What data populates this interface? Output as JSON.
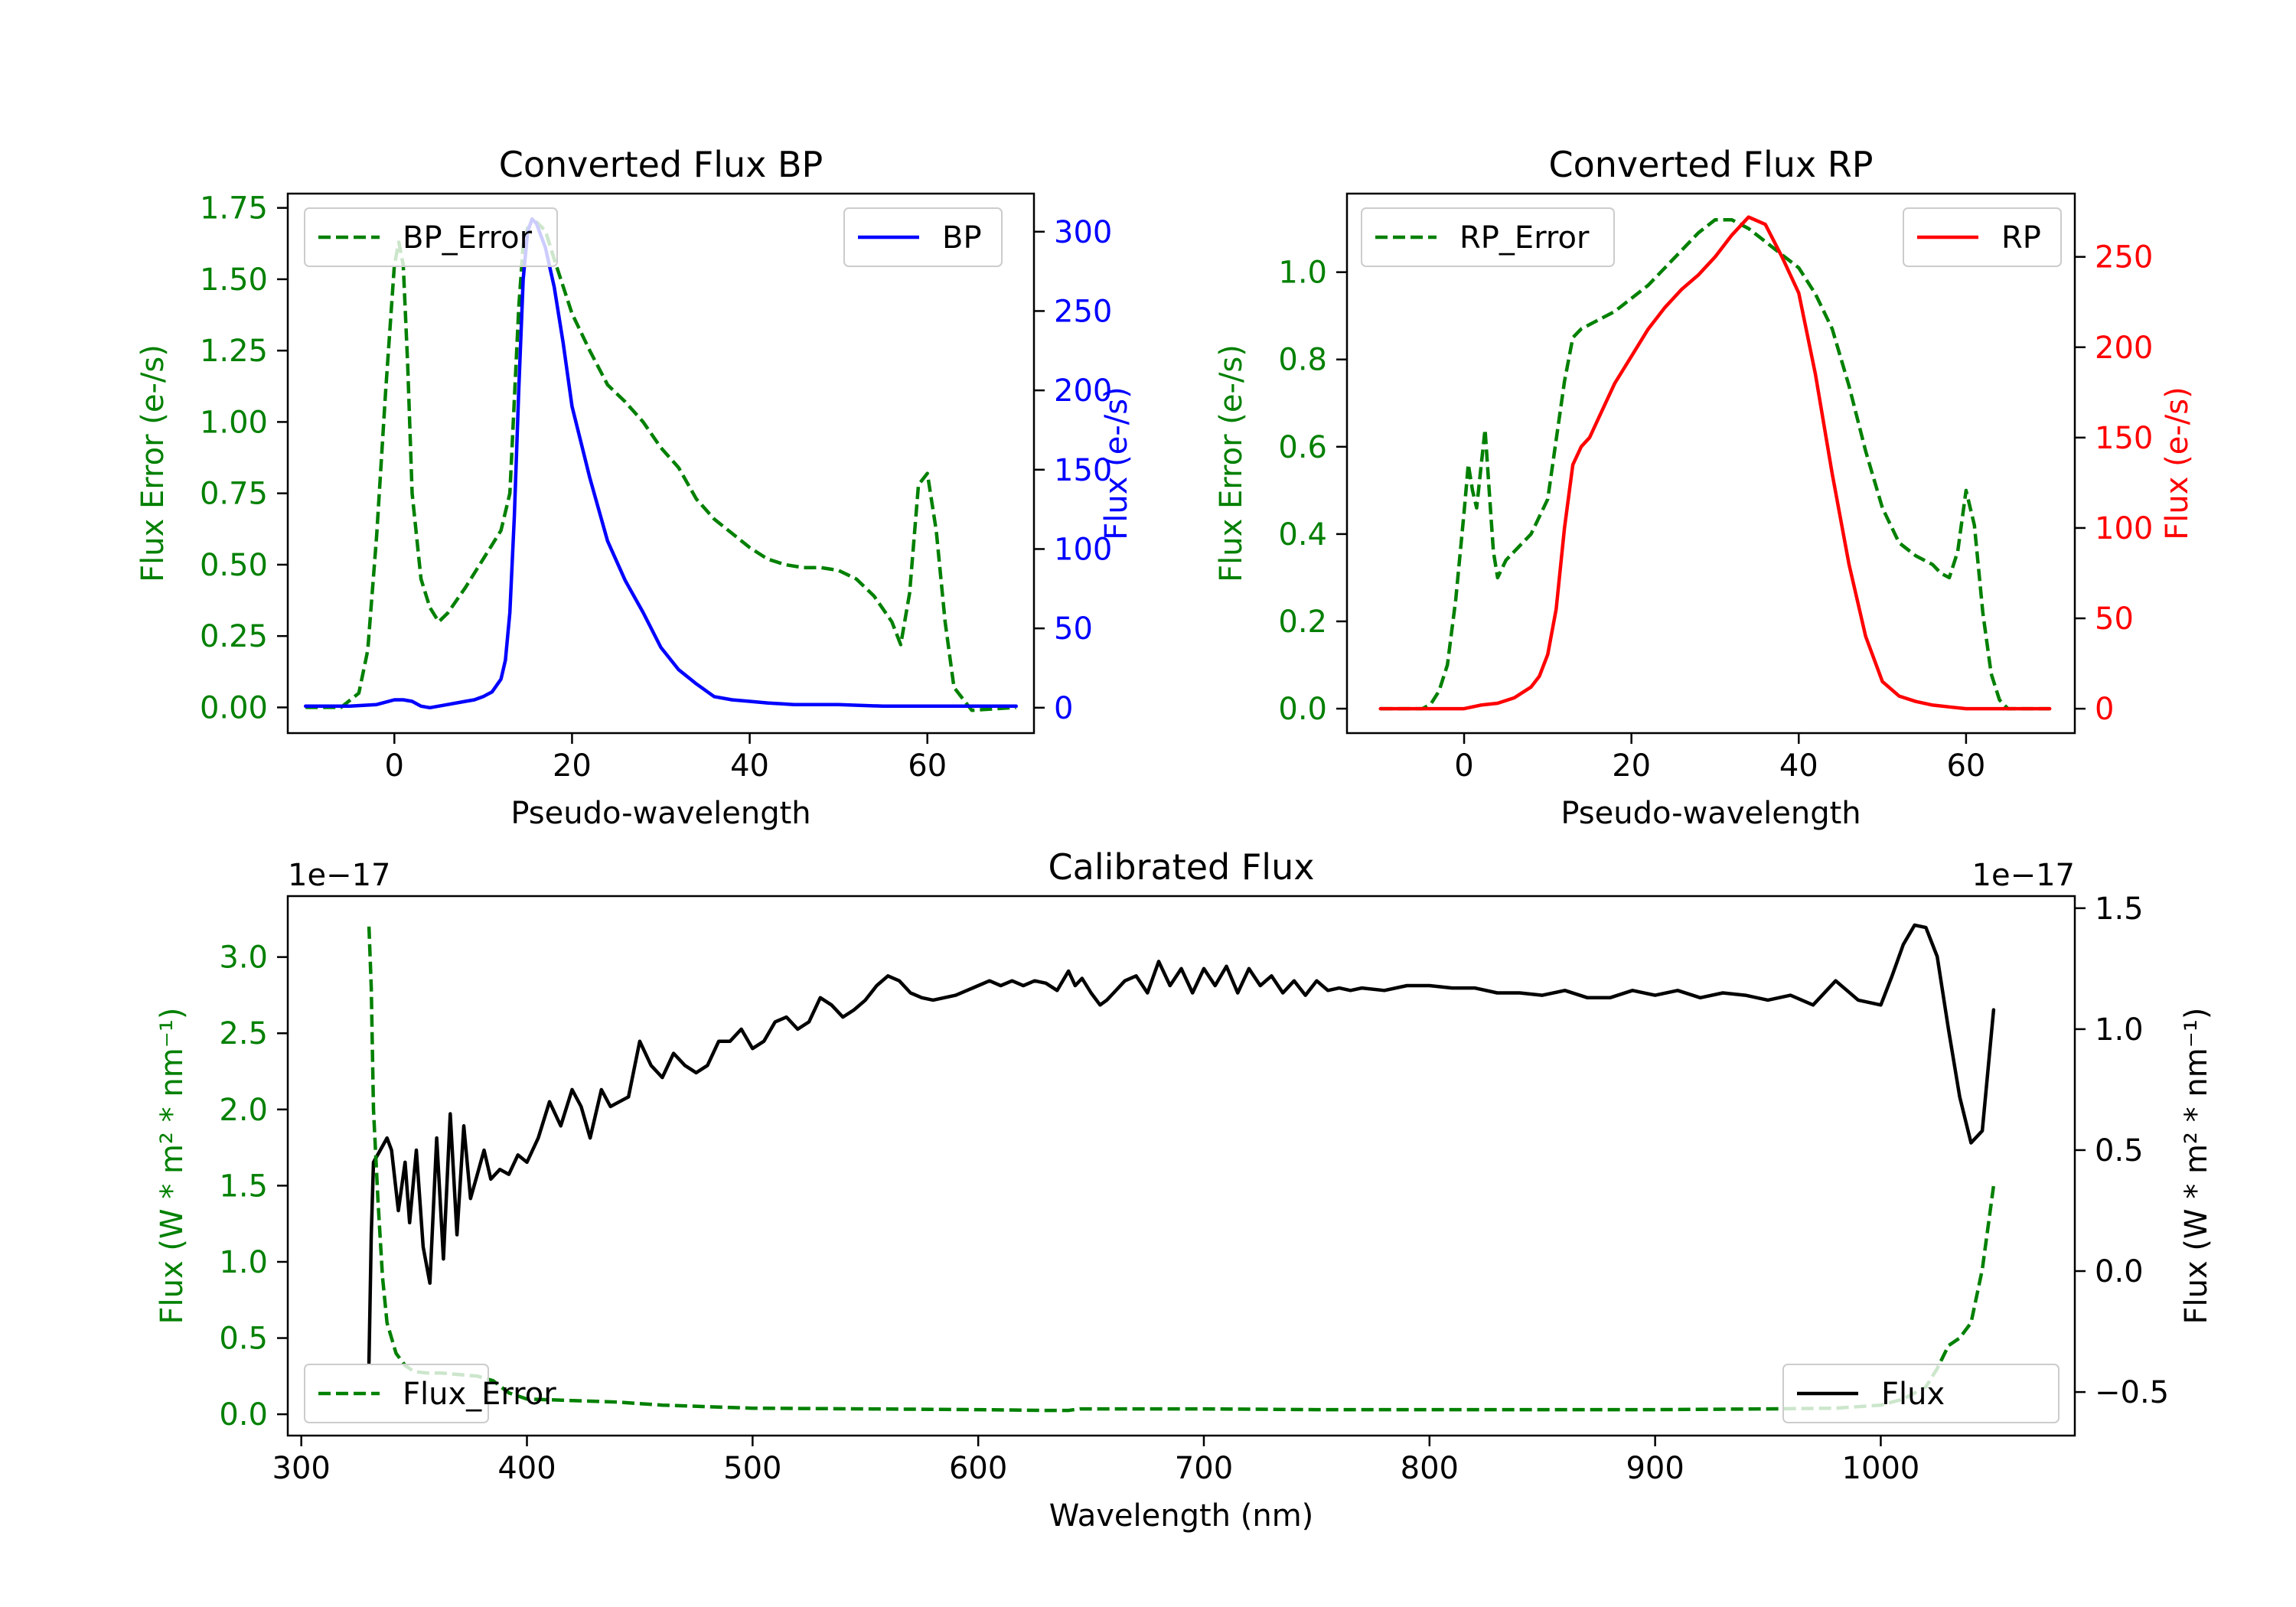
{
  "colors": {
    "green": "#008000",
    "blue": "#0000ff",
    "red": "#ff0000",
    "black": "#000000"
  },
  "chart_data": [
    {
      "id": "bp",
      "type": "line",
      "title": "Converted Flux BP",
      "xlabel": "Pseudo-wavelength",
      "ylabel_left": "Flux Error (e-/s)",
      "ylabel_right": "Flux (e-/s)",
      "xlim": [
        -12,
        72
      ],
      "ylim_left": [
        -0.09,
        1.8
      ],
      "ylim_right": [
        -16,
        324
      ],
      "xticks": [
        0,
        20,
        40,
        60
      ],
      "xtick_labels": [
        "0",
        "20",
        "40",
        "60"
      ],
      "yticks_left": [
        0,
        0.25,
        0.5,
        0.75,
        1.0,
        1.25,
        1.5,
        1.75
      ],
      "ytick_labels_left": [
        "0.00",
        "0.25",
        "0.50",
        "0.75",
        "1.00",
        "1.25",
        "1.50",
        "1.75"
      ],
      "yticks_right": [
        0,
        50,
        100,
        150,
        200,
        250,
        300
      ],
      "ytick_labels_right": [
        "0",
        "50",
        "100",
        "150",
        "200",
        "250",
        "300"
      ],
      "legend_left": "top-left",
      "legend_right": "top-right",
      "series": [
        {
          "name": "BP_Error",
          "axis": "left",
          "color": "#008000",
          "dash": true,
          "x": [
            -10,
            -6,
            -4,
            -3,
            -2,
            -1,
            0,
            0.5,
            1,
            1.5,
            2,
            3,
            4,
            5,
            6,
            8,
            10,
            12,
            13,
            14,
            14.5,
            15,
            16,
            17,
            18,
            20,
            22,
            24,
            26,
            28,
            30,
            32,
            34,
            36,
            38,
            40,
            42,
            44,
            46,
            48,
            50,
            52,
            54,
            56,
            57,
            58,
            59,
            60,
            61,
            62,
            63,
            65,
            70
          ],
          "values": [
            0.0,
            0.0,
            0.05,
            0.2,
            0.6,
            1.1,
            1.55,
            1.63,
            1.55,
            1.2,
            0.75,
            0.45,
            0.35,
            0.3,
            0.33,
            0.42,
            0.52,
            0.62,
            0.75,
            1.4,
            1.62,
            1.68,
            1.7,
            1.67,
            1.57,
            1.38,
            1.25,
            1.13,
            1.07,
            1.0,
            0.91,
            0.84,
            0.73,
            0.66,
            0.61,
            0.56,
            0.52,
            0.5,
            0.49,
            0.49,
            0.48,
            0.45,
            0.39,
            0.3,
            0.22,
            0.4,
            0.78,
            0.82,
            0.62,
            0.3,
            0.07,
            -0.01,
            0.0
          ]
        },
        {
          "name": "BP",
          "axis": "right",
          "color": "#0000ff",
          "dash": false,
          "x": [
            -10,
            -5,
            -2,
            0,
            1,
            2,
            3,
            4,
            6,
            8,
            9,
            10,
            11,
            12,
            12.5,
            13,
            13.5,
            14,
            14.5,
            15,
            15.5,
            16,
            17,
            18,
            19,
            20,
            22,
            24,
            26,
            28,
            30,
            32,
            34,
            36,
            38,
            40,
            42,
            45,
            50,
            55,
            60,
            65,
            70
          ],
          "values": [
            1,
            1,
            2,
            5,
            5,
            4,
            1,
            0,
            2,
            4,
            5,
            7,
            10,
            18,
            30,
            60,
            120,
            200,
            270,
            300,
            308,
            305,
            290,
            265,
            230,
            190,
            145,
            105,
            80,
            60,
            38,
            24,
            15,
            7,
            5,
            4,
            3,
            2,
            2,
            1,
            1,
            1,
            1
          ]
        }
      ]
    },
    {
      "id": "rp",
      "type": "line",
      "title": "Converted Flux RP",
      "xlabel": "Pseudo-wavelength",
      "ylabel_left": "Flux Error (e-/s)",
      "ylabel_right": "Flux (e-/s)",
      "xlim": [
        -14,
        73
      ],
      "ylim_left": [
        -0.056,
        1.18
      ],
      "ylim_right": [
        -13.5,
        285
      ],
      "xticks": [
        0,
        20,
        40,
        60
      ],
      "xtick_labels": [
        "0",
        "20",
        "40",
        "60"
      ],
      "yticks_left": [
        0,
        0.2,
        0.4,
        0.6,
        0.8,
        1.0
      ],
      "ytick_labels_left": [
        "0.0",
        "0.2",
        "0.4",
        "0.6",
        "0.8",
        "1.0"
      ],
      "yticks_right": [
        0,
        50,
        100,
        150,
        200,
        250
      ],
      "ytick_labels_right": [
        "0",
        "50",
        "100",
        "150",
        "200",
        "250"
      ],
      "legend_left": "top-left",
      "legend_right": "top-right",
      "series": [
        {
          "name": "RP_Error",
          "axis": "left",
          "color": "#008000",
          "dash": true,
          "x": [
            -10,
            -5,
            -4,
            -3,
            -2,
            -1,
            0,
            0.5,
            1,
            1.5,
            2,
            2.5,
            3,
            3.5,
            4,
            5,
            6,
            8,
            10,
            12,
            13,
            14,
            16,
            18,
            20,
            22,
            24,
            26,
            28,
            30,
            32,
            34,
            36,
            38,
            40,
            42,
            44,
            46,
            48,
            50,
            52,
            54,
            56,
            57,
            58,
            59,
            60,
            61,
            62,
            63,
            64,
            65,
            70
          ],
          "values": [
            0.0,
            0.0,
            0.01,
            0.04,
            0.1,
            0.25,
            0.45,
            0.56,
            0.5,
            0.46,
            0.55,
            0.64,
            0.5,
            0.36,
            0.3,
            0.34,
            0.36,
            0.4,
            0.48,
            0.75,
            0.85,
            0.87,
            0.89,
            0.91,
            0.94,
            0.97,
            1.01,
            1.05,
            1.09,
            1.12,
            1.12,
            1.1,
            1.07,
            1.04,
            1.01,
            0.95,
            0.87,
            0.74,
            0.59,
            0.46,
            0.38,
            0.35,
            0.33,
            0.31,
            0.3,
            0.36,
            0.5,
            0.42,
            0.22,
            0.08,
            0.02,
            0.0,
            0.0
          ]
        },
        {
          "name": "RP",
          "axis": "right",
          "color": "#ff0000",
          "dash": false,
          "x": [
            -10,
            -5,
            0,
            2,
            4,
            6,
            8,
            9,
            10,
            11,
            12,
            13,
            14,
            15,
            16,
            18,
            20,
            22,
            24,
            26,
            28,
            30,
            32,
            34,
            36,
            38,
            40,
            42,
            44,
            46,
            48,
            50,
            52,
            54,
            56,
            58,
            60,
            62,
            65,
            70
          ],
          "values": [
            0,
            0,
            0,
            2,
            3,
            6,
            12,
            18,
            30,
            55,
            100,
            135,
            145,
            150,
            160,
            180,
            195,
            210,
            222,
            232,
            240,
            250,
            262,
            272,
            268,
            250,
            230,
            185,
            130,
            80,
            40,
            15,
            7,
            4,
            2,
            1,
            0,
            0,
            0,
            0
          ]
        }
      ]
    },
    {
      "id": "cal",
      "type": "line",
      "title": "Calibrated Flux",
      "xlabel": "Wavelength (nm)",
      "ylabel_left": "Flux (W * m² * nm⁻¹)",
      "ylabel_right": "Flux (W * m² * nm⁻¹)",
      "offset_left": "1e−17",
      "offset_right": "1e−17",
      "xlim": [
        294,
        1086
      ],
      "ylim_left": [
        -0.14,
        3.4
      ],
      "ylim_right": [
        -0.68,
        1.55
      ],
      "xticks": [
        300,
        400,
        500,
        600,
        700,
        800,
        900,
        1000
      ],
      "xtick_labels": [
        "300",
        "400",
        "500",
        "600",
        "700",
        "800",
        "900",
        "1000"
      ],
      "yticks_left": [
        0,
        0.5,
        1.0,
        1.5,
        2.0,
        2.5,
        3.0
      ],
      "ytick_labels_left": [
        "0.0",
        "0.5",
        "1.0",
        "1.5",
        "2.0",
        "2.5",
        "3.0"
      ],
      "yticks_right": [
        -0.5,
        0,
        0.5,
        1.0,
        1.5
      ],
      "ytick_labels_right": [
        "−0.5",
        "0.0",
        "0.5",
        "1.0",
        "1.5"
      ],
      "legend_left": "bottom-left",
      "legend_right": "bottom-right",
      "series": [
        {
          "name": "Flux",
          "axis": "right",
          "color": "#000000",
          "dash": false,
          "x": [
            330,
            331,
            332,
            335,
            338,
            340,
            343,
            346,
            348,
            351,
            354,
            357,
            360,
            363,
            366,
            369,
            372,
            375,
            378,
            381,
            384,
            388,
            392,
            396,
            400,
            405,
            410,
            415,
            420,
            424,
            428,
            433,
            437,
            441,
            445,
            450,
            455,
            460,
            465,
            470,
            475,
            480,
            485,
            490,
            495,
            500,
            505,
            510,
            515,
            520,
            525,
            530,
            535,
            540,
            545,
            550,
            555,
            560,
            565,
            570,
            575,
            580,
            590,
            600,
            605,
            610,
            615,
            620,
            625,
            630,
            635,
            640,
            643,
            646,
            650,
            654,
            657,
            660,
            665,
            670,
            675,
            680,
            685,
            690,
            695,
            700,
            705,
            710,
            715,
            720,
            725,
            730,
            735,
            740,
            745,
            750,
            755,
            760,
            765,
            770,
            780,
            790,
            800,
            810,
            820,
            830,
            840,
            850,
            860,
            870,
            880,
            890,
            900,
            910,
            920,
            930,
            940,
            950,
            960,
            970,
            980,
            990,
            1000,
            1005,
            1010,
            1015,
            1020,
            1025,
            1030,
            1035,
            1040,
            1045,
            1050
          ],
          "values": [
            -0.38,
            0.15,
            0.45,
            0.5,
            0.55,
            0.5,
            0.25,
            0.45,
            0.2,
            0.5,
            0.1,
            -0.05,
            0.55,
            0.05,
            0.65,
            0.15,
            0.6,
            0.3,
            0.4,
            0.5,
            0.38,
            0.42,
            0.4,
            0.48,
            0.45,
            0.55,
            0.7,
            0.6,
            0.75,
            0.68,
            0.55,
            0.75,
            0.68,
            0.7,
            0.72,
            0.95,
            0.85,
            0.8,
            0.9,
            0.85,
            0.82,
            0.85,
            0.95,
            0.95,
            1.0,
            0.92,
            0.95,
            1.03,
            1.05,
            1.0,
            1.03,
            1.13,
            1.1,
            1.05,
            1.08,
            1.12,
            1.18,
            1.22,
            1.2,
            1.15,
            1.13,
            1.12,
            1.14,
            1.18,
            1.2,
            1.18,
            1.2,
            1.18,
            1.2,
            1.19,
            1.16,
            1.24,
            1.18,
            1.21,
            1.15,
            1.1,
            1.12,
            1.15,
            1.2,
            1.22,
            1.15,
            1.28,
            1.18,
            1.25,
            1.15,
            1.25,
            1.18,
            1.26,
            1.15,
            1.25,
            1.18,
            1.22,
            1.15,
            1.2,
            1.14,
            1.2,
            1.16,
            1.17,
            1.16,
            1.17,
            1.16,
            1.18,
            1.18,
            1.17,
            1.17,
            1.15,
            1.15,
            1.14,
            1.16,
            1.13,
            1.13,
            1.16,
            1.14,
            1.16,
            1.13,
            1.15,
            1.14,
            1.12,
            1.14,
            1.1,
            1.2,
            1.12,
            1.1,
            1.22,
            1.35,
            1.43,
            1.42,
            1.3,
            1.0,
            0.72,
            0.53,
            0.58,
            1.08
          ]
        },
        {
          "name": "Flux_Error",
          "axis": "left",
          "color": "#008000",
          "dash": true,
          "x": [
            330,
            331,
            332,
            334,
            336,
            338,
            342,
            346,
            350,
            356,
            362,
            370,
            378,
            385,
            392,
            400,
            420,
            440,
            460,
            480,
            500,
            550,
            600,
            630,
            640,
            645,
            700,
            750,
            800,
            850,
            900,
            950,
            980,
            1000,
            1010,
            1020,
            1025,
            1030,
            1035,
            1040,
            1045,
            1050
          ],
          "values": [
            3.2,
            2.8,
            2.0,
            1.4,
            0.9,
            0.6,
            0.4,
            0.32,
            0.28,
            0.27,
            0.27,
            0.26,
            0.25,
            0.22,
            0.14,
            0.1,
            0.09,
            0.08,
            0.06,
            0.05,
            0.04,
            0.035,
            0.03,
            0.025,
            0.025,
            0.035,
            0.035,
            0.03,
            0.03,
            0.03,
            0.03,
            0.035,
            0.04,
            0.06,
            0.1,
            0.18,
            0.3,
            0.45,
            0.5,
            0.6,
            0.95,
            1.5
          ]
        }
      ]
    }
  ]
}
